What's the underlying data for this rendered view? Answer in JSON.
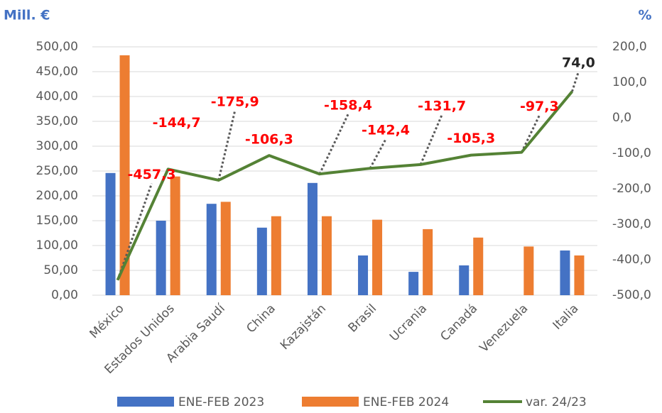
{
  "chart_data": {
    "type": "bar_line",
    "y_title": "Mill. €",
    "y2_title": "%",
    "categories": [
      "México",
      "Estados Unidos",
      "Arabia Saudí",
      "China",
      "Kazajstán",
      "Brasil",
      "Ucrania",
      "Canadá",
      "Venezuela",
      "Italia"
    ],
    "series": [
      {
        "name": "ENE-FEB 2023",
        "color": "#4472c4",
        "values": [
          246,
          150,
          184,
          136,
          226,
          80,
          47,
          60,
          null,
          90
        ]
      },
      {
        "name": "ENE-FEB 2024",
        "color": "#ed7d31",
        "values": [
          483,
          239,
          188,
          159,
          159,
          152,
          133,
          116,
          98,
          80
        ]
      },
      {
        "name": "var. 24/23",
        "color": "#548235",
        "axis": "y2",
        "values": [
          -457.3,
          -144.7,
          -175.9,
          -106.3,
          -158.4,
          -142.4,
          -131.7,
          -105.3,
          -97.3,
          74.0
        ],
        "value_labels": [
          "-457,3",
          "-144,7",
          "-175,9",
          "-106,3",
          "-158,4",
          "-142,4",
          "-131,7",
          "-105,3",
          "-97,3",
          "74,0"
        ]
      }
    ],
    "ylim": [
      0,
      500
    ],
    "yticks": [
      {
        "value": 0,
        "label": "0,00"
      },
      {
        "value": 50,
        "label": "50,00"
      },
      {
        "value": 100,
        "label": "100,00"
      },
      {
        "value": 150,
        "label": "150,00"
      },
      {
        "value": 200,
        "label": "200,00"
      },
      {
        "value": 250,
        "label": "250,00"
      },
      {
        "value": 300,
        "label": "300,00"
      },
      {
        "value": 350,
        "label": "350,00"
      },
      {
        "value": 400,
        "label": "400,00"
      },
      {
        "value": 450,
        "label": "450,00"
      },
      {
        "value": 500,
        "label": "500,00"
      }
    ],
    "y2lim": [
      -500,
      200
    ],
    "y2ticks": [
      {
        "value": -500,
        "label": "-500,0"
      },
      {
        "value": -400,
        "label": "-400,0"
      },
      {
        "value": -300,
        "label": "-300,0"
      },
      {
        "value": -200,
        "label": "-200,0"
      },
      {
        "value": -100,
        "label": "-100,0"
      },
      {
        "value": 0,
        "label": "0,0"
      },
      {
        "value": 100,
        "label": "100,0"
      },
      {
        "value": 200,
        "label": "200,0"
      }
    ],
    "grid": true
  }
}
